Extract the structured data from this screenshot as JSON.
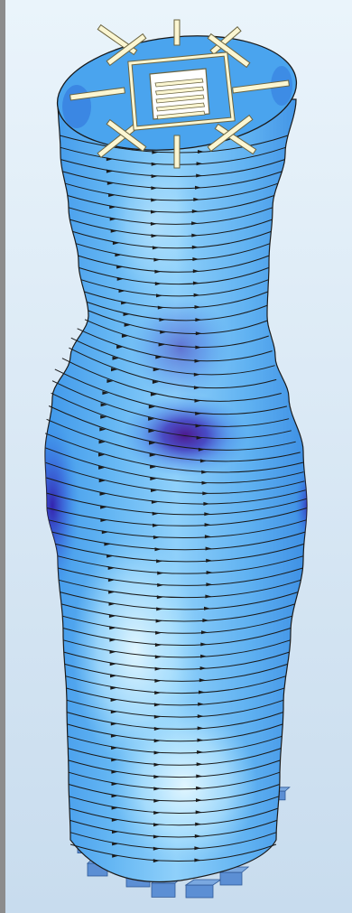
{
  "viewport": {
    "background_top": "#eaf4fb",
    "background_bottom": "#c8dcee",
    "frame_color": "#8c8c8c"
  },
  "model": {
    "subject": "twisted-high-rise-tower-structural-model",
    "floor_count": 60,
    "roof_opening_icon": "core-walls-icon",
    "colors": {
      "slab_light": "#bfeaff",
      "slab_mid": "#62b4f2",
      "slab_base": "#4aa4ee",
      "stress_high": "#3a1a9e",
      "stress_peak": "#5a1a8c",
      "edge_line": "#1a1a1a",
      "wall_fill": "#fbf6d2",
      "wall_edge": "#6b6440",
      "support_fill": "#5c8fd4",
      "support_edge": "#2e5896"
    }
  }
}
